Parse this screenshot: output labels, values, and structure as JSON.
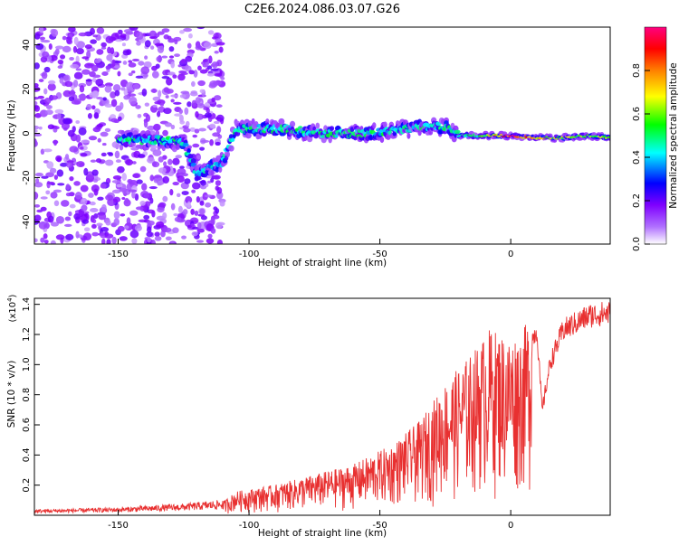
{
  "title": "C2E6.2024.086.03.07.G26",
  "chart_data": [
    {
      "type": "heatmap",
      "xlabel": "Height of straight line (km)",
      "ylabel": "Frequency (Hz)",
      "xlim": [
        -182,
        38
      ],
      "ylim": [
        -50,
        48
      ],
      "xticks": [
        -150,
        -100,
        -50,
        0
      ],
      "yticks": [
        -40,
        -20,
        0,
        20,
        40
      ],
      "colorbar": {
        "label": "Normalized spectral amplitude",
        "range": [
          0,
          1
        ],
        "ticks": [
          "0.0",
          "0.2",
          "0.4",
          "0.6",
          "0.8"
        ],
        "colors": [
          "#ffffff",
          "#7f00ff",
          "#0000ff",
          "#00ffff",
          "#00ff00",
          "#ffff00",
          "#ff8000",
          "#ff0000",
          "#ff0080"
        ]
      },
      "noise_region_until_km": -110,
      "ridge": [
        {
          "x": -145,
          "y": -3,
          "amp": 0.45
        },
        {
          "x": -135,
          "y": -3,
          "amp": 0.45
        },
        {
          "x": -125,
          "y": -4,
          "amp": 0.45
        },
        {
          "x": -120,
          "y": -18,
          "amp": 0.4
        },
        {
          "x": -110,
          "y": -13,
          "amp": 0.4
        },
        {
          "x": -105,
          "y": 2,
          "amp": 0.45
        },
        {
          "x": -95,
          "y": 2,
          "amp": 0.45
        },
        {
          "x": -85,
          "y": 2,
          "amp": 0.45
        },
        {
          "x": -75,
          "y": 0,
          "amp": 0.45
        },
        {
          "x": -65,
          "y": 0,
          "amp": 0.45
        },
        {
          "x": -55,
          "y": 0,
          "amp": 0.45
        },
        {
          "x": -45,
          "y": 1,
          "amp": 0.45
        },
        {
          "x": -35,
          "y": 3,
          "amp": 0.45
        },
        {
          "x": -25,
          "y": 3,
          "amp": 0.45
        },
        {
          "x": -20,
          "y": -1,
          "amp": 0.45
        },
        {
          "x": -10,
          "y": -1,
          "amp": 0.55
        },
        {
          "x": 0,
          "y": -1,
          "amp": 0.95
        },
        {
          "x": 10,
          "y": -2,
          "amp": 0.7
        },
        {
          "x": 20,
          "y": -2,
          "amp": 0.6
        },
        {
          "x": 30,
          "y": -1,
          "amp": 0.6
        },
        {
          "x": 38,
          "y": -2,
          "amp": 0.55
        }
      ]
    },
    {
      "type": "line",
      "xlabel": "Height of straight line (km)",
      "ylabel": "SNR (10 * v/v)",
      "yscale_label": "(x10",
      "yscale_exp": "4",
      "yscale_close": ")",
      "xlim": [
        -182,
        38
      ],
      "ylim": [
        0,
        1.44
      ],
      "xticks": [
        -150,
        -100,
        -50,
        0
      ],
      "yticks": [
        "0.2",
        "0.4",
        "0.6",
        "0.8",
        "1.0",
        "1.2",
        "1.4"
      ],
      "color": "#e83030",
      "envelope": [
        {
          "x": -182,
          "y": 0.03
        },
        {
          "x": -150,
          "y": 0.04
        },
        {
          "x": -125,
          "y": 0.06
        },
        {
          "x": -110,
          "y": 0.08
        },
        {
          "x": -105,
          "y": 0.14
        },
        {
          "x": -90,
          "y": 0.18
        },
        {
          "x": -75,
          "y": 0.24
        },
        {
          "x": -60,
          "y": 0.3
        },
        {
          "x": -45,
          "y": 0.42
        },
        {
          "x": -35,
          "y": 0.55
        },
        {
          "x": -25,
          "y": 0.78
        },
        {
          "x": -15,
          "y": 0.95
        },
        {
          "x": -8,
          "y": 1.1
        },
        {
          "x": 0,
          "y": 1.05
        },
        {
          "x": 5,
          "y": 1.1
        },
        {
          "x": 10,
          "y": 1.28
        },
        {
          "x": 12,
          "y": 0.72
        },
        {
          "x": 15,
          "y": 1.05
        },
        {
          "x": 20,
          "y": 1.28
        },
        {
          "x": 30,
          "y": 1.38
        },
        {
          "x": 38,
          "y": 1.4
        }
      ]
    }
  ]
}
